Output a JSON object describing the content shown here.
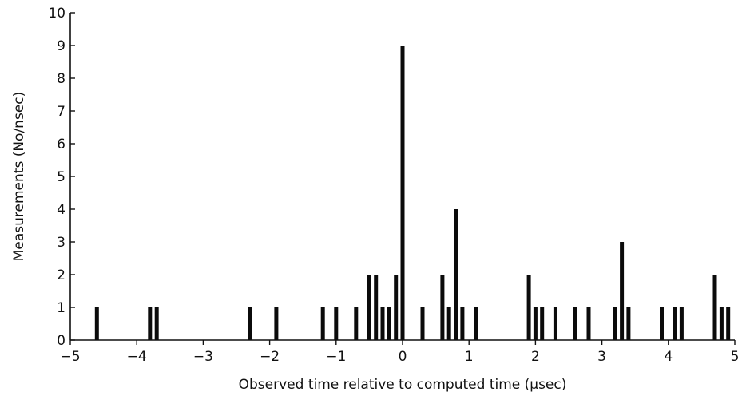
{
  "chart_data": {
    "type": "bar",
    "title": "",
    "xlabel": "Observed time relative to computed time (μsec)",
    "ylabel": "Measurements (No/nsec)",
    "xlim": [
      -5,
      5
    ],
    "ylim": [
      0,
      10
    ],
    "x_ticks": [
      -5,
      -4,
      -3,
      -2,
      -1,
      0,
      1,
      2,
      3,
      4,
      5
    ],
    "x_tick_labels": [
      "−5",
      "−4",
      "−3",
      "−2",
      "−1",
      "0",
      "1",
      "2",
      "3",
      "4",
      "5"
    ],
    "y_ticks": [
      0,
      1,
      2,
      3,
      4,
      5,
      6,
      7,
      8,
      9,
      10
    ],
    "y_tick_labels": [
      "0",
      "1",
      "2",
      "3",
      "4",
      "5",
      "6",
      "7",
      "8",
      "9",
      "10"
    ],
    "bin_width": 0.1,
    "grid": false,
    "bars": [
      {
        "x": -4.6,
        "value": 1
      },
      {
        "x": -3.8,
        "value": 1
      },
      {
        "x": -3.7,
        "value": 1
      },
      {
        "x": -2.3,
        "value": 1
      },
      {
        "x": -1.9,
        "value": 1
      },
      {
        "x": -1.2,
        "value": 1
      },
      {
        "x": -1.0,
        "value": 1
      },
      {
        "x": -0.7,
        "value": 1
      },
      {
        "x": -0.5,
        "value": 2
      },
      {
        "x": -0.4,
        "value": 2
      },
      {
        "x": -0.3,
        "value": 1
      },
      {
        "x": -0.2,
        "value": 1
      },
      {
        "x": -0.1,
        "value": 2
      },
      {
        "x": 0.0,
        "value": 9
      },
      {
        "x": 0.3,
        "value": 1
      },
      {
        "x": 0.6,
        "value": 2
      },
      {
        "x": 0.7,
        "value": 1
      },
      {
        "x": 0.8,
        "value": 4
      },
      {
        "x": 0.9,
        "value": 1
      },
      {
        "x": 1.1,
        "value": 1
      },
      {
        "x": 1.9,
        "value": 2
      },
      {
        "x": 2.0,
        "value": 1
      },
      {
        "x": 2.1,
        "value": 1
      },
      {
        "x": 2.3,
        "value": 1
      },
      {
        "x": 2.6,
        "value": 1
      },
      {
        "x": 2.8,
        "value": 1
      },
      {
        "x": 3.2,
        "value": 1
      },
      {
        "x": 3.3,
        "value": 3
      },
      {
        "x": 3.4,
        "value": 1
      },
      {
        "x": 3.9,
        "value": 1
      },
      {
        "x": 4.1,
        "value": 1
      },
      {
        "x": 4.2,
        "value": 1
      },
      {
        "x": 4.7,
        "value": 2
      },
      {
        "x": 4.8,
        "value": 1
      },
      {
        "x": 4.9,
        "value": 1
      }
    ]
  }
}
